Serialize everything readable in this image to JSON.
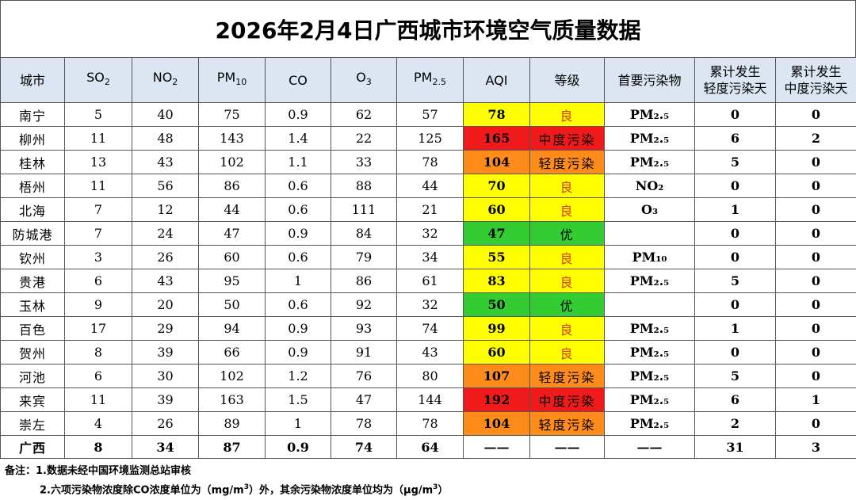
{
  "title": "2026年2月4日广西城市环境空气质量数据",
  "headers": {
    "city": "城市",
    "so2": "SO",
    "so2_sub": "2",
    "no2": "NO",
    "no2_sub": "2",
    "pm10": "PM",
    "pm10_sub": "10",
    "co": "CO",
    "o3": "O",
    "o3_sub": "3",
    "pm25": "PM",
    "pm25_sub": "2.5",
    "aqi": "AQI",
    "grade": "等级",
    "primary": "首要污染物",
    "cum_light_1": "累计发生",
    "cum_light_2": "轻度污染天",
    "cum_mod_1": "累计发生",
    "cum_mod_2": "中度污染天"
  },
  "level_colors": {
    "优": "#33cc33",
    "良": "#ffff00",
    "轻度污染": "#ff8c1a",
    "中度污染": "#f01a1a"
  },
  "rows": [
    {
      "city": "南宁",
      "so2": "5",
      "no2": "40",
      "pm10": "75",
      "co": "0.9",
      "o3": "62",
      "pm25": "57",
      "aqi": "78",
      "grade": "良",
      "primary": "PM₂.₅",
      "cum_light": "0",
      "cum_mod": "0"
    },
    {
      "city": "柳州",
      "so2": "11",
      "no2": "48",
      "pm10": "143",
      "co": "1.4",
      "o3": "22",
      "pm25": "125",
      "aqi": "165",
      "grade": "中度污染",
      "primary": "PM₂.₅",
      "cum_light": "6",
      "cum_mod": "2"
    },
    {
      "city": "桂林",
      "so2": "13",
      "no2": "43",
      "pm10": "102",
      "co": "1.1",
      "o3": "33",
      "pm25": "78",
      "aqi": "104",
      "grade": "轻度污染",
      "primary": "PM₂.₅",
      "cum_light": "5",
      "cum_mod": "0"
    },
    {
      "city": "梧州",
      "so2": "11",
      "no2": "56",
      "pm10": "86",
      "co": "0.6",
      "o3": "88",
      "pm25": "44",
      "aqi": "70",
      "grade": "良",
      "primary": "NO₂",
      "cum_light": "0",
      "cum_mod": "0"
    },
    {
      "city": "北海",
      "so2": "7",
      "no2": "12",
      "pm10": "44",
      "co": "0.6",
      "o3": "111",
      "pm25": "21",
      "aqi": "60",
      "grade": "良",
      "primary": "O₃",
      "cum_light": "1",
      "cum_mod": "0"
    },
    {
      "city": "防城港",
      "so2": "7",
      "no2": "24",
      "pm10": "47",
      "co": "0.9",
      "o3": "84",
      "pm25": "32",
      "aqi": "47",
      "grade": "优",
      "primary": "",
      "cum_light": "0",
      "cum_mod": "0"
    },
    {
      "city": "钦州",
      "so2": "3",
      "no2": "26",
      "pm10": "60",
      "co": "0.6",
      "o3": "79",
      "pm25": "34",
      "aqi": "55",
      "grade": "良",
      "primary": "PM₁₀",
      "cum_light": "0",
      "cum_mod": "0"
    },
    {
      "city": "贵港",
      "so2": "6",
      "no2": "43",
      "pm10": "95",
      "co": "1",
      "o3": "86",
      "pm25": "61",
      "aqi": "83",
      "grade": "良",
      "primary": "PM₂.₅",
      "cum_light": "5",
      "cum_mod": "0"
    },
    {
      "city": "玉林",
      "so2": "9",
      "no2": "20",
      "pm10": "50",
      "co": "0.6",
      "o3": "92",
      "pm25": "32",
      "aqi": "50",
      "grade": "优",
      "primary": "",
      "cum_light": "0",
      "cum_mod": "0"
    },
    {
      "city": "百色",
      "so2": "17",
      "no2": "29",
      "pm10": "94",
      "co": "0.9",
      "o3": "93",
      "pm25": "74",
      "aqi": "99",
      "grade": "良",
      "primary": "PM₂.₅",
      "cum_light": "1",
      "cum_mod": "0"
    },
    {
      "city": "贺州",
      "so2": "8",
      "no2": "39",
      "pm10": "66",
      "co": "0.9",
      "o3": "91",
      "pm25": "43",
      "aqi": "60",
      "grade": "良",
      "primary": "PM₂.₅",
      "cum_light": "0",
      "cum_mod": "0"
    },
    {
      "city": "河池",
      "so2": "6",
      "no2": "30",
      "pm10": "102",
      "co": "1.2",
      "o3": "76",
      "pm25": "80",
      "aqi": "107",
      "grade": "轻度污染",
      "primary": "PM₂.₅",
      "cum_light": "5",
      "cum_mod": "0"
    },
    {
      "city": "来宾",
      "so2": "11",
      "no2": "39",
      "pm10": "163",
      "co": "1.5",
      "o3": "47",
      "pm25": "144",
      "aqi": "192",
      "grade": "中度污染",
      "primary": "PM₂.₅",
      "cum_light": "6",
      "cum_mod": "1"
    },
    {
      "city": "崇左",
      "so2": "4",
      "no2": "26",
      "pm10": "89",
      "co": "1",
      "o3": "78",
      "pm25": "78",
      "aqi": "104",
      "grade": "轻度污染",
      "primary": "PM₂.₅",
      "cum_light": "2",
      "cum_mod": "0"
    }
  ],
  "total": {
    "city": "广西",
    "so2": "8",
    "no2": "34",
    "pm10": "87",
    "co": "0.9",
    "o3": "74",
    "pm25": "64",
    "aqi": "——",
    "grade": "——",
    "primary": "——",
    "cum_light": "31",
    "cum_mod": "3"
  },
  "remarks": {
    "label": "备注：",
    "line1": "1.数据未经中国环境监测总站审核",
    "line2_a": "2.六项污染物浓度除CO浓度单位为（mg/m",
    "line2_sup1": "3",
    "line2_b": "）外，其余污染物浓度单位均为（μg/m",
    "line2_sup2": "3",
    "line2_c": "）"
  }
}
